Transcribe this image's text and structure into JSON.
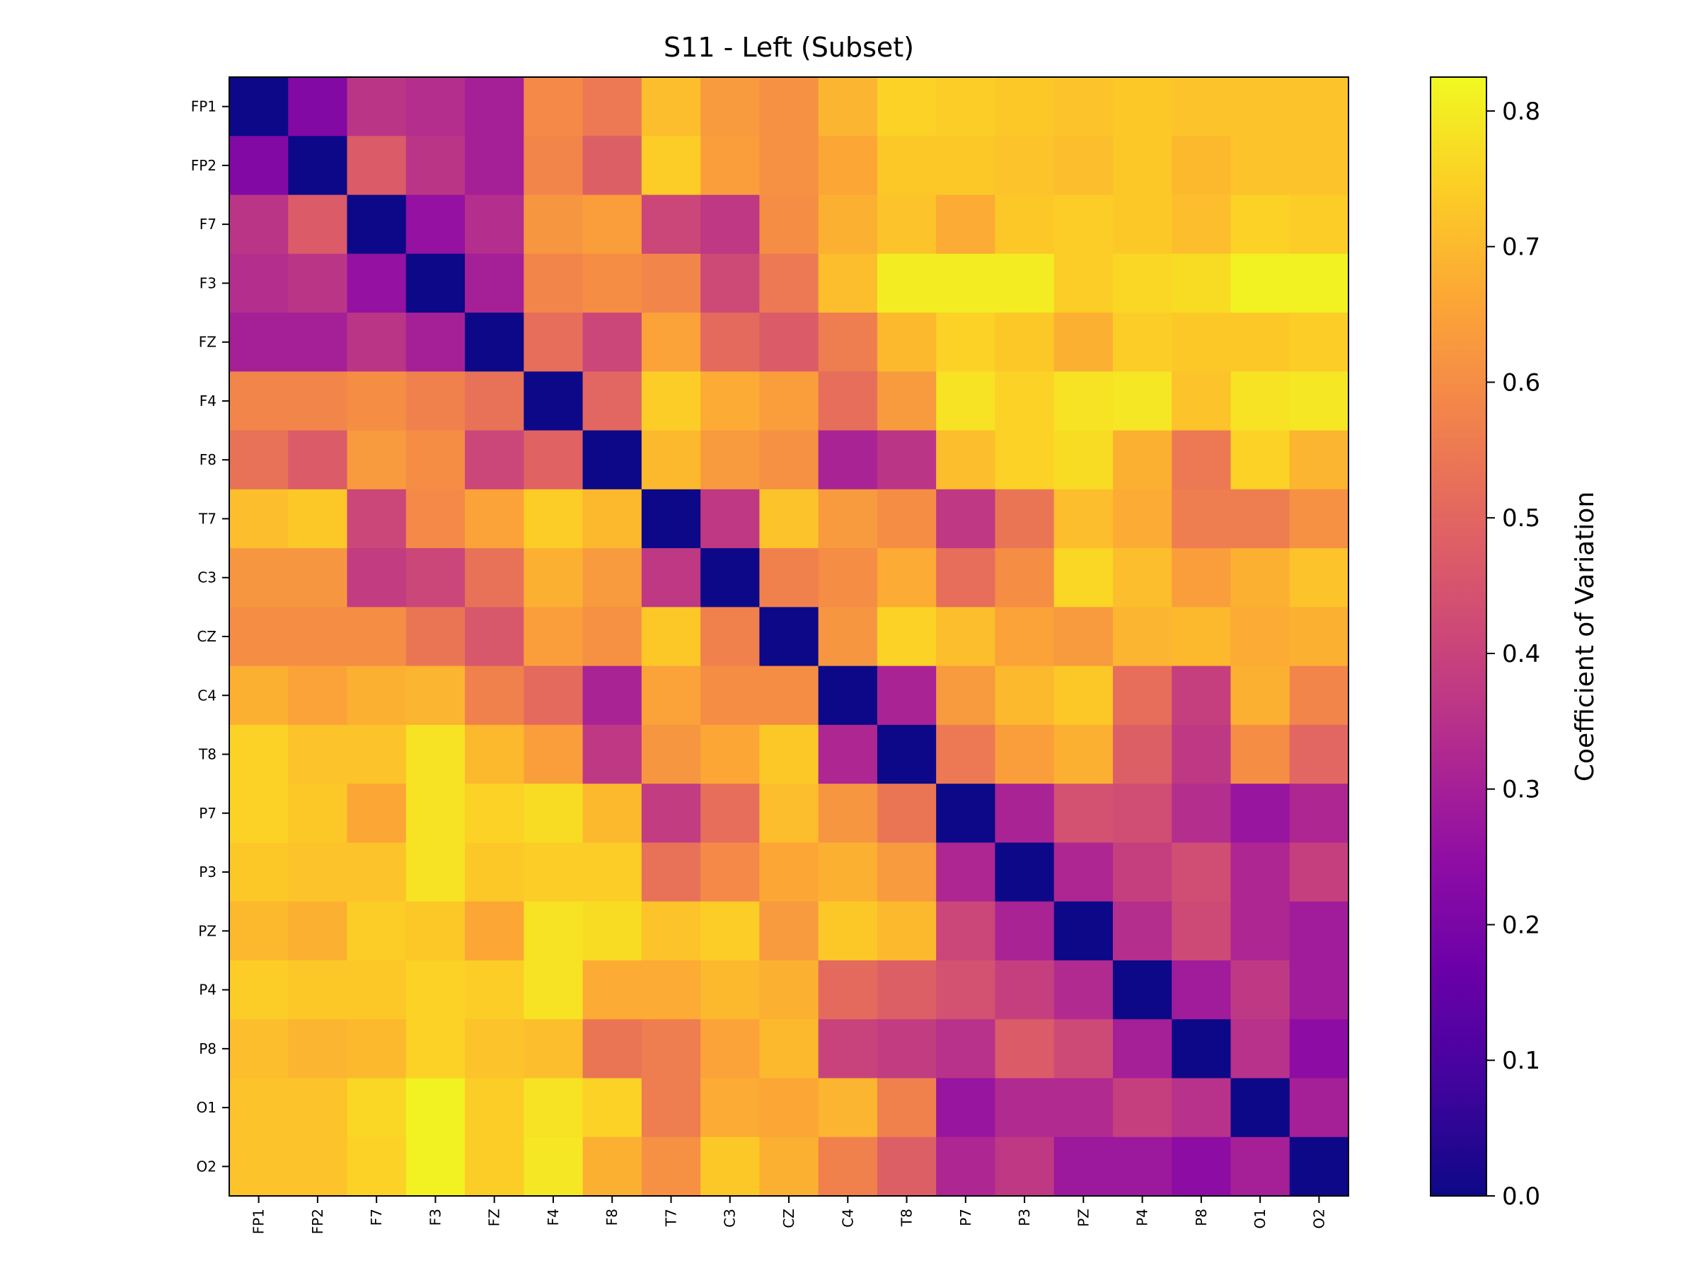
{
  "chart_data": {
    "type": "heatmap",
    "title": "S11 - Left (Subset)",
    "xlabel": "",
    "ylabel": "",
    "colorbar_label": "Coefficient of Variation",
    "colormap": "plasma",
    "vmin": 0.0,
    "vmax": 0.825,
    "colorbar_ticks": [
      "0.0",
      "0.1",
      "0.2",
      "0.3",
      "0.4",
      "0.5",
      "0.6",
      "0.7",
      "0.8"
    ],
    "rows": [
      "FP1",
      "FP2",
      "F7",
      "F3",
      "FZ",
      "F4",
      "F8",
      "T7",
      "C3",
      "CZ",
      "C4",
      "T8",
      "P7",
      "P3",
      "PZ",
      "P4",
      "P8",
      "O1",
      "O2"
    ],
    "cols": [
      "FP1",
      "FP2",
      "F7",
      "F3",
      "FZ",
      "F4",
      "F8",
      "T7",
      "C3",
      "CZ",
      "C4",
      "T8",
      "P7",
      "P3",
      "PZ",
      "P4",
      "P8",
      "O1",
      "O2"
    ],
    "values": [
      [
        0.0,
        0.22,
        0.36,
        0.34,
        0.3,
        0.59,
        0.55,
        0.71,
        0.63,
        0.61,
        0.69,
        0.75,
        0.74,
        0.73,
        0.72,
        0.73,
        0.72,
        0.72,
        0.72
      ],
      [
        0.22,
        0.0,
        0.47,
        0.36,
        0.3,
        0.58,
        0.48,
        0.74,
        0.64,
        0.61,
        0.66,
        0.73,
        0.73,
        0.72,
        0.71,
        0.73,
        0.7,
        0.72,
        0.72
      ],
      [
        0.36,
        0.47,
        0.0,
        0.26,
        0.34,
        0.62,
        0.64,
        0.41,
        0.37,
        0.6,
        0.68,
        0.72,
        0.67,
        0.73,
        0.74,
        0.73,
        0.71,
        0.75,
        0.74
      ],
      [
        0.34,
        0.36,
        0.26,
        0.0,
        0.3,
        0.58,
        0.6,
        0.58,
        0.42,
        0.55,
        0.71,
        0.8,
        0.8,
        0.8,
        0.74,
        0.76,
        0.77,
        0.81,
        0.81
      ],
      [
        0.3,
        0.3,
        0.36,
        0.3,
        0.0,
        0.52,
        0.41,
        0.65,
        0.51,
        0.47,
        0.56,
        0.7,
        0.75,
        0.73,
        0.68,
        0.74,
        0.73,
        0.73,
        0.74
      ],
      [
        0.58,
        0.58,
        0.6,
        0.57,
        0.53,
        0.0,
        0.5,
        0.74,
        0.67,
        0.64,
        0.52,
        0.63,
        0.78,
        0.75,
        0.78,
        0.79,
        0.72,
        0.78,
        0.79
      ],
      [
        0.53,
        0.47,
        0.63,
        0.6,
        0.41,
        0.49,
        0.0,
        0.7,
        0.63,
        0.61,
        0.31,
        0.36,
        0.71,
        0.75,
        0.77,
        0.68,
        0.55,
        0.75,
        0.69
      ],
      [
        0.71,
        0.73,
        0.41,
        0.59,
        0.65,
        0.74,
        0.7,
        0.0,
        0.37,
        0.72,
        0.63,
        0.6,
        0.37,
        0.54,
        0.71,
        0.67,
        0.56,
        0.56,
        0.61
      ],
      [
        0.62,
        0.62,
        0.38,
        0.41,
        0.53,
        0.68,
        0.63,
        0.37,
        0.0,
        0.57,
        0.6,
        0.67,
        0.52,
        0.6,
        0.76,
        0.71,
        0.64,
        0.68,
        0.72
      ],
      [
        0.6,
        0.6,
        0.6,
        0.54,
        0.46,
        0.64,
        0.61,
        0.73,
        0.57,
        0.0,
        0.62,
        0.75,
        0.71,
        0.65,
        0.63,
        0.69,
        0.7,
        0.67,
        0.68
      ],
      [
        0.68,
        0.65,
        0.68,
        0.69,
        0.57,
        0.51,
        0.31,
        0.65,
        0.6,
        0.6,
        0.0,
        0.31,
        0.63,
        0.7,
        0.73,
        0.52,
        0.39,
        0.68,
        0.58
      ],
      [
        0.75,
        0.72,
        0.72,
        0.78,
        0.7,
        0.64,
        0.37,
        0.62,
        0.66,
        0.73,
        0.32,
        0.0,
        0.55,
        0.64,
        0.68,
        0.48,
        0.37,
        0.6,
        0.5
      ],
      [
        0.75,
        0.73,
        0.66,
        0.78,
        0.75,
        0.77,
        0.7,
        0.38,
        0.52,
        0.71,
        0.62,
        0.54,
        0.0,
        0.31,
        0.44,
        0.43,
        0.34,
        0.27,
        0.32
      ],
      [
        0.73,
        0.72,
        0.72,
        0.78,
        0.73,
        0.74,
        0.74,
        0.53,
        0.59,
        0.66,
        0.68,
        0.63,
        0.32,
        0.0,
        0.32,
        0.39,
        0.43,
        0.32,
        0.39
      ],
      [
        0.7,
        0.68,
        0.74,
        0.73,
        0.66,
        0.78,
        0.77,
        0.72,
        0.74,
        0.63,
        0.73,
        0.7,
        0.41,
        0.31,
        0.0,
        0.34,
        0.42,
        0.32,
        0.29
      ],
      [
        0.74,
        0.73,
        0.73,
        0.75,
        0.74,
        0.78,
        0.67,
        0.67,
        0.7,
        0.68,
        0.51,
        0.48,
        0.44,
        0.39,
        0.33,
        0.0,
        0.29,
        0.37,
        0.29
      ],
      [
        0.71,
        0.69,
        0.7,
        0.75,
        0.72,
        0.71,
        0.54,
        0.56,
        0.65,
        0.7,
        0.4,
        0.38,
        0.35,
        0.47,
        0.42,
        0.3,
        0.0,
        0.35,
        0.24
      ],
      [
        0.72,
        0.72,
        0.76,
        0.81,
        0.74,
        0.78,
        0.75,
        0.56,
        0.67,
        0.66,
        0.69,
        0.57,
        0.27,
        0.33,
        0.33,
        0.39,
        0.35,
        0.0,
        0.3
      ],
      [
        0.72,
        0.72,
        0.75,
        0.81,
        0.74,
        0.79,
        0.68,
        0.61,
        0.73,
        0.68,
        0.57,
        0.48,
        0.32,
        0.37,
        0.28,
        0.28,
        0.24,
        0.3,
        0.0
      ]
    ]
  }
}
